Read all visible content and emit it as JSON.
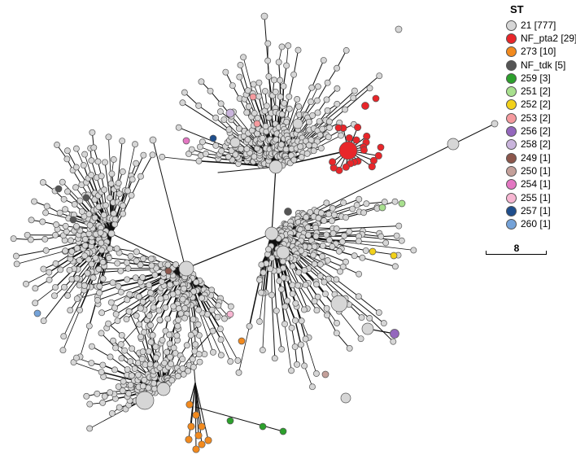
{
  "legend": {
    "title": "ST",
    "items": [
      {
        "label": "21 [777]",
        "color": "#d6d6d6"
      },
      {
        "label": "NF_pta2 [29]",
        "color": "#e8262a"
      },
      {
        "label": "273 [10]",
        "color": "#f28a1e"
      },
      {
        "label": "NF_tdk [5]",
        "color": "#555555"
      },
      {
        "label": "259 [3]",
        "color": "#2ca02c"
      },
      {
        "label": "251 [2]",
        "color": "#a8e08e"
      },
      {
        "label": "252 [2]",
        "color": "#f2d11a"
      },
      {
        "label": "253 [2]",
        "color": "#f59a9e"
      },
      {
        "label": "256 [2]",
        "color": "#9467bd"
      },
      {
        "label": "258 [2]",
        "color": "#c9b4dc"
      },
      {
        "label": "249 [1]",
        "color": "#8c564b"
      },
      {
        "label": "250 [1]",
        "color": "#c4a09a"
      },
      {
        "label": "254 [1]",
        "color": "#e377c2"
      },
      {
        "label": "255 [1]",
        "color": "#f7b6d2"
      },
      {
        "label": "257 [1]",
        "color": "#1f4e8c"
      },
      {
        "label": "260 [1]",
        "color": "#74a2d8"
      }
    ]
  },
  "scale_bar": {
    "label": "8"
  }
}
